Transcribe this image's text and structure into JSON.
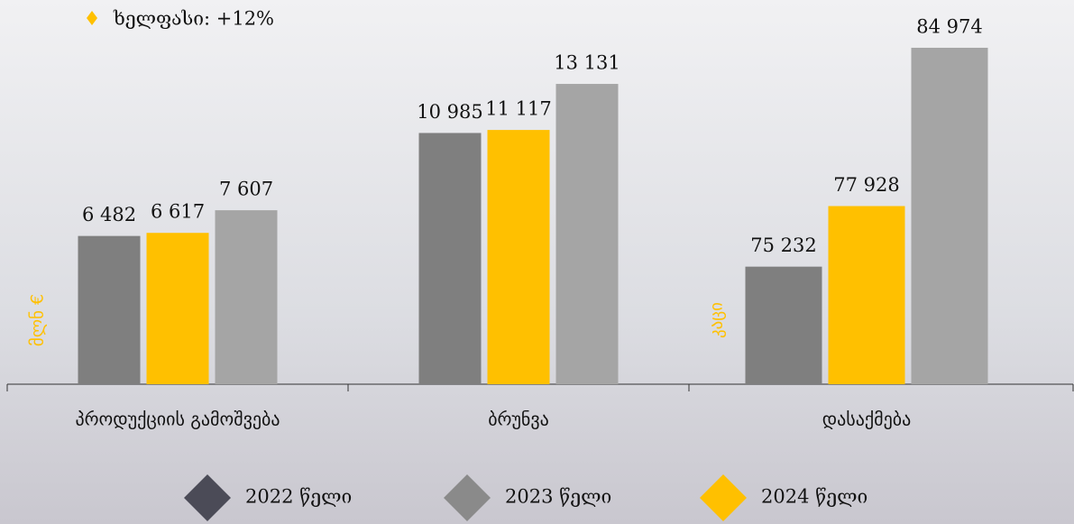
{
  "chart_data": [
    {
      "type": "bar",
      "ylabel": "მლნ €",
      "categories": [
        "პროდუქციის გამოშვება",
        "ბრუნვა"
      ],
      "ylim": [
        0,
        16800
      ],
      "series": [
        {
          "name": "2022 წელი",
          "color": "#7f7f7f",
          "legend_color": "#4b4b57",
          "values": [
            6482,
            10985
          ],
          "value_labels": [
            "6 482",
            "10 985"
          ]
        },
        {
          "name": "2023 წელი",
          "color": "#a5a5a5",
          "legend_color": "#8a8a8a",
          "values": [
            7607,
            13131
          ],
          "value_labels": [
            "7 607",
            "13 131"
          ]
        },
        {
          "name": "2024 წელი",
          "color": "#ffc000",
          "legend_color": "#ffc000",
          "values": [
            6617,
            11117
          ],
          "value_labels": [
            "6 617",
            "11 117"
          ]
        }
      ]
    },
    {
      "type": "bar",
      "ylabel": "კაცი",
      "annotation": "ხელფასი: +12%",
      "categories": [
        "დასაქმება"
      ],
      "ylim": [
        70000,
        87100
      ],
      "series": [
        {
          "color": "#7f7f7f",
          "values": [
            75232
          ],
          "value_labels": [
            "75 232"
          ]
        },
        {
          "color": "#a5a5a5",
          "values": [
            84974
          ],
          "value_labels": [
            "84 974"
          ]
        },
        {
          "color": "#ffc000",
          "values": [
            77928
          ],
          "value_labels": [
            "77 928"
          ]
        }
      ]
    }
  ]
}
